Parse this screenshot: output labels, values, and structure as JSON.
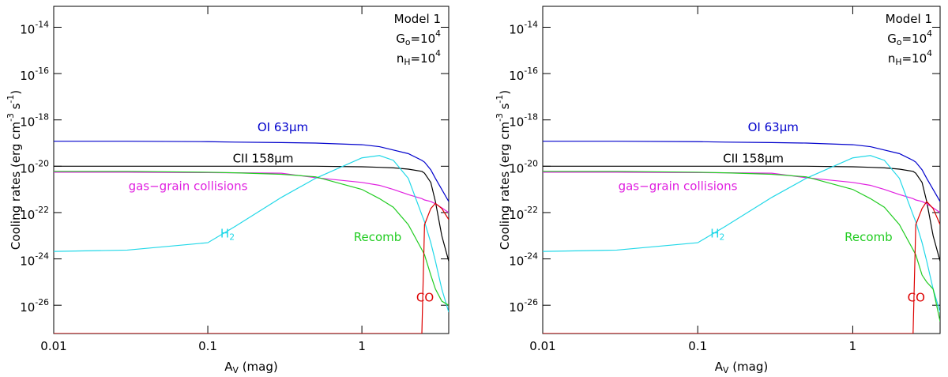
{
  "chart_data": [
    {
      "type": "line",
      "log_x": true,
      "log_y": true,
      "x_label": "A_{V} (mag)",
      "y_label": "Cooling rates (erg cm^{-3} s^{-1})",
      "annotations": [
        "Model 1",
        "G_{o}=10^{4}",
        "n_{H}=10^{4}"
      ],
      "xlim": [
        0.01,
        3.66
      ],
      "xticks": [
        0.01,
        0.1,
        1
      ],
      "ylim": [
        6e-28,
        8e-14
      ],
      "yticks": [
        {
          "value": 1e-14,
          "label": "10^{-14}"
        },
        {
          "value": 1e-16,
          "label": "10^{-16}"
        },
        {
          "value": 1e-18,
          "label": "10^{-18}"
        },
        {
          "value": 1e-20,
          "label": "10^{-20}"
        },
        {
          "value": 1e-22,
          "label": "10^{-22}"
        },
        {
          "value": 1e-24,
          "label": "10^{-24}"
        },
        {
          "value": 1e-26,
          "label": "10^{-26}"
        }
      ],
      "x": [
        0.01,
        0.03,
        0.1,
        0.15,
        0.3,
        0.5,
        1,
        1.3,
        1.6,
        2,
        2.45,
        2.55,
        2.8,
        3,
        3.3,
        3.66
      ],
      "series": [
        {
          "name": "OI 63μm",
          "color": "#0000cc",
          "values": [
            1.2e-19,
            1.2e-19,
            1.15e-19,
            1.1e-19,
            1.05e-19,
            1e-19,
            8.5e-20,
            7e-20,
            5e-20,
            3.5e-20,
            1.8e-20,
            1.5e-20,
            7e-21,
            3e-21,
            1e-21,
            3e-22
          ]
        },
        {
          "name": "CII  158μm",
          "color": "#000000",
          "values": [
            1e-20,
            1e-20,
            1e-20,
            1e-20,
            1e-20,
            1e-20,
            9.5e-21,
            9e-21,
            8.5e-21,
            7.5e-21,
            6e-21,
            5e-21,
            2e-21,
            3e-22,
            1e-23,
            8e-25
          ]
        },
        {
          "name": "gas−grain collisions",
          "color": "#e020e0",
          "values": [
            5.5e-21,
            5.5e-21,
            5.3e-21,
            5.2e-21,
            5e-21,
            3.2e-21,
            2e-21,
            1.5e-21,
            1e-21,
            6e-22,
            4e-22,
            3.5e-22,
            3e-22,
            2.4e-22,
            1.6e-22,
            1e-22
          ]
        },
        {
          "name": "H_{2}",
          "color": "#22d8e8",
          "values": [
            2.1e-24,
            2.4e-24,
            5e-24,
            2.5e-23,
            4.5e-22,
            3e-21,
            2.3e-20,
            2.9e-20,
            1.8e-20,
            3e-21,
            8e-23,
            4e-23,
            5e-24,
            8e-25,
            5e-26,
            5e-27
          ]
        },
        {
          "name": "Recomb",
          "color": "#22cc22",
          "values": [
            6e-21,
            6e-21,
            5.5e-21,
            5.2e-21,
            4.5e-21,
            3.5e-21,
            1e-21,
            4e-22,
            1.7e-22,
            3e-23,
            2.5e-24,
            1.5e-24,
            2e-25,
            5e-26,
            1.5e-26,
            1e-26
          ]
        },
        {
          "name": "CO",
          "color": "#dd0000",
          "values": [
            6e-28,
            6e-28,
            6e-28,
            6e-28,
            6e-28,
            6e-28,
            6e-28,
            6e-28,
            6e-28,
            6e-28,
            6e-28,
            3e-23,
            1.5e-22,
            2.5e-22,
            1.5e-22,
            5e-23
          ]
        }
      ]
    },
    {
      "type": "line",
      "log_x": true,
      "log_y": true,
      "x_label": "A_{V} (mag)",
      "y_label": "Cooling rates (erg cm^{-3} s^{-1})",
      "annotations": [
        "Model 1",
        "G_{o}=10^{4}",
        "n_{H}=10^{4}"
      ],
      "xlim": [
        0.01,
        3.66
      ],
      "xticks": [
        0.01,
        0.1,
        1
      ],
      "ylim": [
        6e-28,
        8e-14
      ],
      "yticks": [
        {
          "value": 1e-14,
          "label": "10^{-14}"
        },
        {
          "value": 1e-16,
          "label": "10^{-16}"
        },
        {
          "value": 1e-18,
          "label": "10^{-18}"
        },
        {
          "value": 1e-20,
          "label": "10^{-20}"
        },
        {
          "value": 1e-22,
          "label": "10^{-22}"
        },
        {
          "value": 1e-24,
          "label": "10^{-24}"
        },
        {
          "value": 1e-26,
          "label": "10^{-26}"
        }
      ],
      "x": [
        0.01,
        0.03,
        0.1,
        0.15,
        0.3,
        0.5,
        1,
        1.3,
        1.6,
        2,
        2.45,
        2.55,
        2.8,
        3,
        3.3,
        3.66
      ],
      "series": [
        {
          "name": "OI 63μm",
          "color": "#0000cc",
          "values": [
            1.2e-19,
            1.2e-19,
            1.15e-19,
            1.1e-19,
            1.05e-19,
            1e-19,
            8.5e-20,
            7e-20,
            5e-20,
            3.5e-20,
            1.8e-20,
            1.5e-20,
            7e-21,
            3e-21,
            1e-21,
            3e-22
          ]
        },
        {
          "name": "CII  158μm",
          "color": "#000000",
          "values": [
            1e-20,
            1e-20,
            1e-20,
            1e-20,
            1e-20,
            1e-20,
            9.5e-21,
            9e-21,
            8.5e-21,
            7.5e-21,
            6e-21,
            5e-21,
            2e-21,
            3e-22,
            1e-23,
            8e-25
          ]
        },
        {
          "name": "gas−grain collisions",
          "color": "#e020e0",
          "values": [
            5.5e-21,
            5.5e-21,
            5.3e-21,
            5.2e-21,
            5e-21,
            3.2e-21,
            2e-21,
            1.5e-21,
            1e-21,
            6e-22,
            4e-22,
            3.5e-22,
            3e-22,
            2.4e-22,
            1.6e-22,
            1e-22
          ]
        },
        {
          "name": "H_{2}",
          "color": "#22d8e8",
          "values": [
            2.1e-24,
            2.4e-24,
            5e-24,
            2.5e-23,
            4.5e-22,
            3e-21,
            2.3e-20,
            2.9e-20,
            1.8e-20,
            3e-21,
            8e-23,
            4e-23,
            5e-24,
            8e-25,
            5e-26,
            5e-27
          ]
        },
        {
          "name": "Recomb",
          "color": "#22cc22",
          "values": [
            6e-21,
            6e-21,
            5.5e-21,
            5.2e-21,
            4.5e-21,
            3.5e-21,
            1e-21,
            4e-22,
            1.7e-22,
            3e-23,
            2.5e-24,
            1.5e-24,
            2e-25,
            1e-25,
            5e-26,
            2e-27
          ]
        },
        {
          "name": "CO",
          "color": "#dd0000",
          "values": [
            6e-28,
            6e-28,
            6e-28,
            6e-28,
            6e-28,
            6e-28,
            6e-28,
            6e-28,
            6e-28,
            6e-28,
            6e-28,
            3e-23,
            1.5e-22,
            3e-22,
            1.5e-22,
            3e-23
          ]
        }
      ]
    }
  ]
}
